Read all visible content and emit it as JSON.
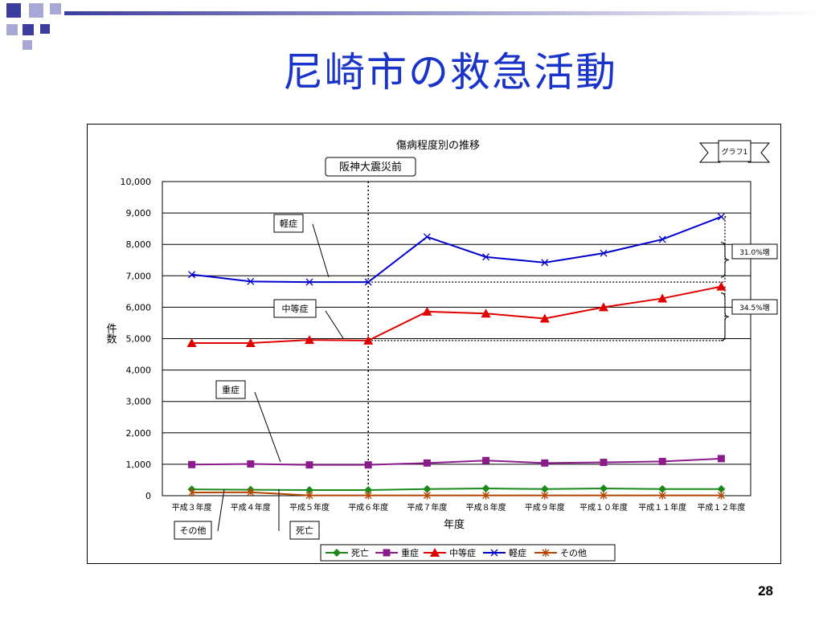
{
  "slide": {
    "title": "尼崎市の救急活動",
    "page_number": "28"
  },
  "colors": {
    "title": "#1a33c8",
    "deco_dark": "#3d3d9e",
    "deco_light": "#a8a8d4"
  },
  "chart_data": {
    "type": "line",
    "title": "傷病程度別の推移",
    "badge": "グラフ1",
    "xlabel": "年度",
    "ylabel": "件数",
    "ylim": [
      0,
      10000
    ],
    "yticks": [
      "0",
      "1,000",
      "2,000",
      "3,000",
      "4,000",
      "5,000",
      "6,000",
      "7,000",
      "8,000",
      "9,000",
      "10,000"
    ],
    "grid": true,
    "legend_position": "bottom",
    "categories": [
      "平成３年度",
      "平成４年度",
      "平成５年度",
      "平成６年度",
      "平成７年度",
      "平成８年度",
      "平成９年度",
      "平成１０年度",
      "平成１１年度",
      "平成１２年度"
    ],
    "series": [
      {
        "name": "死亡",
        "color": "#1a8a1a",
        "marker": "diamond",
        "values": [
          200,
          190,
          180,
          180,
          210,
          230,
          210,
          230,
          210,
          210
        ]
      },
      {
        "name": "重症",
        "color": "#8b1a8b",
        "marker": "square",
        "values": [
          990,
          1010,
          980,
          980,
          1040,
          1120,
          1040,
          1060,
          1090,
          1180
        ]
      },
      {
        "name": "中等症",
        "color": "#e00000",
        "marker": "triangle",
        "values": [
          4860,
          4860,
          4960,
          4940,
          5860,
          5800,
          5640,
          6000,
          6280,
          6660
        ]
      },
      {
        "name": "軽症",
        "color": "#0000cc",
        "marker": "x",
        "values": [
          7040,
          6820,
          6800,
          6800,
          8240,
          7600,
          7420,
          7720,
          8160,
          8880
        ]
      },
      {
        "name": "その他",
        "color": "#b34700",
        "marker": "star",
        "values": [
          100,
          110,
          10,
          10,
          10,
          10,
          10,
          10,
          10,
          10
        ]
      }
    ],
    "annotations": {
      "earthquake": "阪神大震災前",
      "labels": [
        "軽症",
        "中等症",
        "重症",
        "その他",
        "死亡"
      ],
      "increase_mild": "31.0%増",
      "increase_moderate": "34.5%増"
    }
  }
}
